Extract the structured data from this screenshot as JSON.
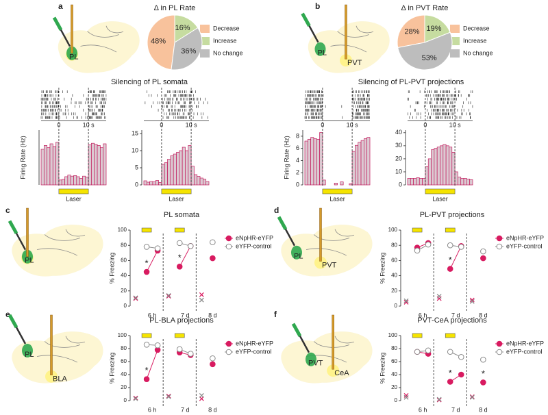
{
  "panels": [
    {
      "label": "a",
      "regions": [
        "PL"
      ]
    },
    {
      "label": "b",
      "regions": [
        "PL",
        "PVT"
      ]
    },
    {
      "label": "c",
      "regions": [
        "PL"
      ]
    },
    {
      "label": "d",
      "regions": [
        "PL",
        "PVT"
      ]
    },
    {
      "label": "e",
      "regions": [
        "PL",
        "BLA"
      ]
    },
    {
      "label": "f",
      "regions": [
        "PVT",
        "CeA"
      ]
    }
  ],
  "section_titles": [
    "Silencing of PL somata",
    "Silencing of PL-PVT projections"
  ],
  "chart_data": [
    {
      "type": "pie",
      "title": "Δ in PL Rate",
      "categories": [
        "Decrease",
        "Increase",
        "No change"
      ],
      "values": [
        48,
        16,
        36
      ],
      "value_labels": [
        "48%",
        "16%",
        "36%"
      ],
      "colors": [
        "#f8c29c",
        "#c6dca0",
        "#bdbdbd"
      ]
    },
    {
      "type": "pie",
      "title": "Δ in PVT Rate",
      "categories": [
        "Decrease",
        "Increase",
        "No change"
      ],
      "values": [
        28,
        19,
        53
      ],
      "value_labels": [
        "28%",
        "19%",
        "53%"
      ],
      "colors": [
        "#f8c29c",
        "#c6dca0",
        "#bdbdbd"
      ]
    },
    {
      "type": "histogram",
      "ylabel": "Firing Rate (Hz)",
      "bins": [
        -6,
        -5,
        -4,
        -3,
        -2,
        -1,
        0,
        1,
        2,
        3,
        4,
        5,
        6,
        7,
        8,
        9,
        10,
        11,
        12,
        13,
        14,
        15,
        16
      ],
      "values": [
        6.5,
        7.2,
        6.8,
        7.5,
        7,
        7.8,
        0.9,
        1,
        1.5,
        1.8,
        1.6,
        1.7,
        1.5,
        1.2,
        1.6,
        1.4,
        7.3,
        7.6,
        7.4,
        7.2,
        6.8,
        7.5
      ],
      "xlim": [
        -6,
        16
      ],
      "xticks": [
        0,
        {
          "value": 10,
          "label": "10 s"
        }
      ],
      "ylim": [
        0,
        10
      ],
      "color": "#dccad2",
      "edge": "#c2185b",
      "laser_label": "Laser"
    },
    {
      "type": "histogram",
      "bins": [
        -6,
        -5,
        -4,
        -3,
        -2,
        -1,
        0,
        1,
        2,
        3,
        4,
        5,
        6,
        7,
        8,
        9,
        10,
        11,
        12,
        13,
        14,
        15,
        16
      ],
      "values": [
        1.2,
        0.8,
        1,
        0.9,
        1.3,
        0.7,
        6,
        6.5,
        7.5,
        8.5,
        9,
        9.5,
        10,
        11,
        10,
        11.5,
        5.5,
        3,
        2.5,
        2,
        1.7,
        1
      ],
      "xlim": [
        -6,
        16
      ],
      "xticks": [
        0,
        {
          "value": 10,
          "label": "10 s"
        }
      ],
      "ylim": [
        0,
        16
      ],
      "yticks": [
        0,
        5,
        10,
        15
      ],
      "color": "#dccad2",
      "edge": "#c2185b",
      "laser_label": "Laser"
    },
    {
      "type": "histogram",
      "ylabel": "Firing Rate (Hz)",
      "bins": [
        -6,
        -5,
        -4,
        -3,
        -2,
        -1,
        0,
        1,
        2,
        3,
        4,
        5,
        6,
        7,
        8,
        9,
        10,
        11,
        12,
        13,
        14,
        15,
        16
      ],
      "values": [
        7.2,
        7.5,
        7.8,
        7.6,
        7.5,
        8.6,
        0.8,
        0,
        0,
        0,
        0.3,
        0,
        0.5,
        0,
        0,
        0.2,
        5.5,
        6.5,
        7,
        7.3,
        7.6,
        7.8
      ],
      "xlim": [
        -6,
        16
      ],
      "xticks": [
        0,
        {
          "value": 10,
          "label": "10 s"
        }
      ],
      "ylim": [
        0,
        9
      ],
      "yticks": [
        0,
        2,
        4,
        6,
        8
      ],
      "color": "#dccad2",
      "edge": "#c2185b",
      "laser_label": "Laser"
    },
    {
      "type": "histogram",
      "bins": [
        -6,
        -5,
        -4,
        -3,
        -2,
        -1,
        0,
        1,
        2,
        3,
        4,
        5,
        6,
        7,
        8,
        9,
        10,
        11,
        12,
        13,
        14,
        15,
        16
      ],
      "values": [
        5,
        5,
        5,
        5.5,
        5,
        5,
        14,
        20,
        27,
        28,
        29,
        30,
        31,
        30,
        29,
        25,
        10,
        6,
        5,
        5,
        4.5,
        4
      ],
      "xlim": [
        -6,
        16
      ],
      "xticks": [
        0,
        {
          "value": 10,
          "label": "10 s"
        }
      ],
      "ylim": [
        0,
        42
      ],
      "yticks": [
        0,
        10,
        20,
        30,
        40
      ],
      "color": "#dccad2",
      "edge": "#c2185b",
      "laser_label": "Laser"
    },
    {
      "type": "line",
      "title": "PL somata",
      "ylabel": "% Freezing",
      "x": [
        0,
        1,
        2,
        3,
        4,
        5,
        6,
        7
      ],
      "xlim": [
        -0.5,
        7.6
      ],
      "xticks": [
        {
          "value": 1.5,
          "label": "6 h"
        },
        {
          "value": 4.5,
          "label": "7 d"
        },
        {
          "value": 7,
          "label": "8 d"
        }
      ],
      "ylim": [
        0,
        100
      ],
      "yticks": [
        0,
        20,
        40,
        60,
        80,
        100
      ],
      "laser_x": [
        1,
        4
      ],
      "series": [
        {
          "name": "eNpHR-eYFP",
          "color": "#d81b60",
          "marker": "filled",
          "values": [
            null,
            45,
            73,
            null,
            52,
            79,
            null,
            63
          ]
        },
        {
          "name": "eYFP-control",
          "color": "#8a8a8a",
          "marker": "open",
          "values": [
            null,
            78,
            76,
            null,
            83,
            79,
            null,
            84
          ]
        },
        {
          "color": "#d81b60",
          "marker": "x",
          "values": [
            10,
            null,
            null,
            13,
            null,
            null,
            15,
            null
          ]
        },
        {
          "color": "#8a8a8a",
          "marker": "x",
          "values": [
            11,
            null,
            null,
            14,
            null,
            null,
            8,
            null
          ]
        }
      ],
      "annotations": [
        {
          "text": "*",
          "x": 1
        },
        {
          "text": "*",
          "x": 4
        }
      ]
    },
    {
      "type": "line",
      "title": "PL-PVT projections",
      "ylabel": "% Freezing",
      "x": [
        0,
        1,
        2,
        3,
        4,
        5,
        6,
        7
      ],
      "xlim": [
        -0.5,
        7.6
      ],
      "xticks": [
        {
          "value": 1.5,
          "label": "6 h"
        },
        {
          "value": 4.5,
          "label": "7 d"
        },
        {
          "value": 7,
          "label": "8 d"
        }
      ],
      "ylim": [
        0,
        100
      ],
      "yticks": [
        0,
        20,
        40,
        60,
        80,
        100
      ],
      "laser_x": [
        1,
        4
      ],
      "series": [
        {
          "name": "eNpHR-eYFP",
          "color": "#d81b60",
          "marker": "filled",
          "values": [
            null,
            77,
            83,
            null,
            49,
            79,
            null,
            63
          ]
        },
        {
          "name": "eYFP-control",
          "color": "#8a8a8a",
          "marker": "open",
          "values": [
            null,
            73,
            81,
            null,
            80,
            78,
            null,
            72
          ]
        },
        {
          "color": "#d81b60",
          "marker": "x",
          "values": [
            5,
            null,
            null,
            10,
            null,
            null,
            8,
            null
          ]
        },
        {
          "color": "#8a8a8a",
          "marker": "x",
          "values": [
            7,
            null,
            null,
            13,
            null,
            null,
            6,
            null
          ]
        }
      ],
      "annotations": [
        {
          "text": "*",
          "x": 4
        }
      ]
    },
    {
      "type": "line",
      "title": "PL-BLA projections",
      "ylabel": "% Freezing",
      "x": [
        0,
        1,
        2,
        3,
        4,
        5,
        6,
        7
      ],
      "xlim": [
        -0.5,
        7.6
      ],
      "xticks": [
        {
          "value": 1.5,
          "label": "6 h"
        },
        {
          "value": 4.5,
          "label": "7 d"
        },
        {
          "value": 7,
          "label": "8 d"
        }
      ],
      "ylim": [
        0,
        100
      ],
      "yticks": [
        0,
        20,
        40,
        60,
        80,
        100
      ],
      "laser_x": [
        1,
        4
      ],
      "series": [
        {
          "name": "eNpHR-eYFP",
          "color": "#d81b60",
          "marker": "filled",
          "values": [
            null,
            33,
            78,
            null,
            74,
            70,
            null,
            56
          ]
        },
        {
          "name": "eYFP-control",
          "color": "#8a8a8a",
          "marker": "open",
          "values": [
            null,
            86,
            85,
            null,
            79,
            72,
            null,
            65
          ]
        },
        {
          "color": "#d81b60",
          "marker": "x",
          "values": [
            4,
            null,
            null,
            7,
            null,
            null,
            3,
            null
          ]
        },
        {
          "color": "#8a8a8a",
          "marker": "x",
          "values": [
            3,
            null,
            null,
            6,
            null,
            null,
            8,
            null
          ]
        }
      ],
      "annotations": [
        {
          "text": "*",
          "x": 1
        }
      ]
    },
    {
      "type": "line",
      "title": "PVT-CeA projections",
      "ylabel": "% Freezing",
      "x": [
        0,
        1,
        2,
        3,
        4,
        5,
        6,
        7
      ],
      "xlim": [
        -0.5,
        7.6
      ],
      "xticks": [
        {
          "value": 1.5,
          "label": "6 h"
        },
        {
          "value": 4.5,
          "label": "7 d"
        },
        {
          "value": 7,
          "label": "8 d"
        }
      ],
      "ylim": [
        0,
        100
      ],
      "yticks": [
        0,
        20,
        40,
        60,
        80,
        100
      ],
      "laser_x": [
        1,
        4
      ],
      "series": [
        {
          "name": "eNpHR-eYFP",
          "color": "#d81b60",
          "marker": "filled",
          "values": [
            null,
            75,
            72,
            null,
            29,
            40,
            null,
            28
          ]
        },
        {
          "name": "eYFP-control",
          "color": "#8a8a8a",
          "marker": "open",
          "values": [
            null,
            75,
            77,
            null,
            75,
            67,
            null,
            63
          ]
        },
        {
          "color": "#d81b60",
          "marker": "x",
          "values": [
            8,
            null,
            null,
            1,
            null,
            null,
            6,
            null
          ]
        },
        {
          "color": "#8a8a8a",
          "marker": "x",
          "values": [
            5,
            null,
            null,
            2,
            null,
            null,
            5,
            null
          ]
        }
      ],
      "annotations": [
        {
          "text": "*",
          "x": 4
        },
        {
          "text": "*",
          "x": 7
        }
      ]
    }
  ]
}
